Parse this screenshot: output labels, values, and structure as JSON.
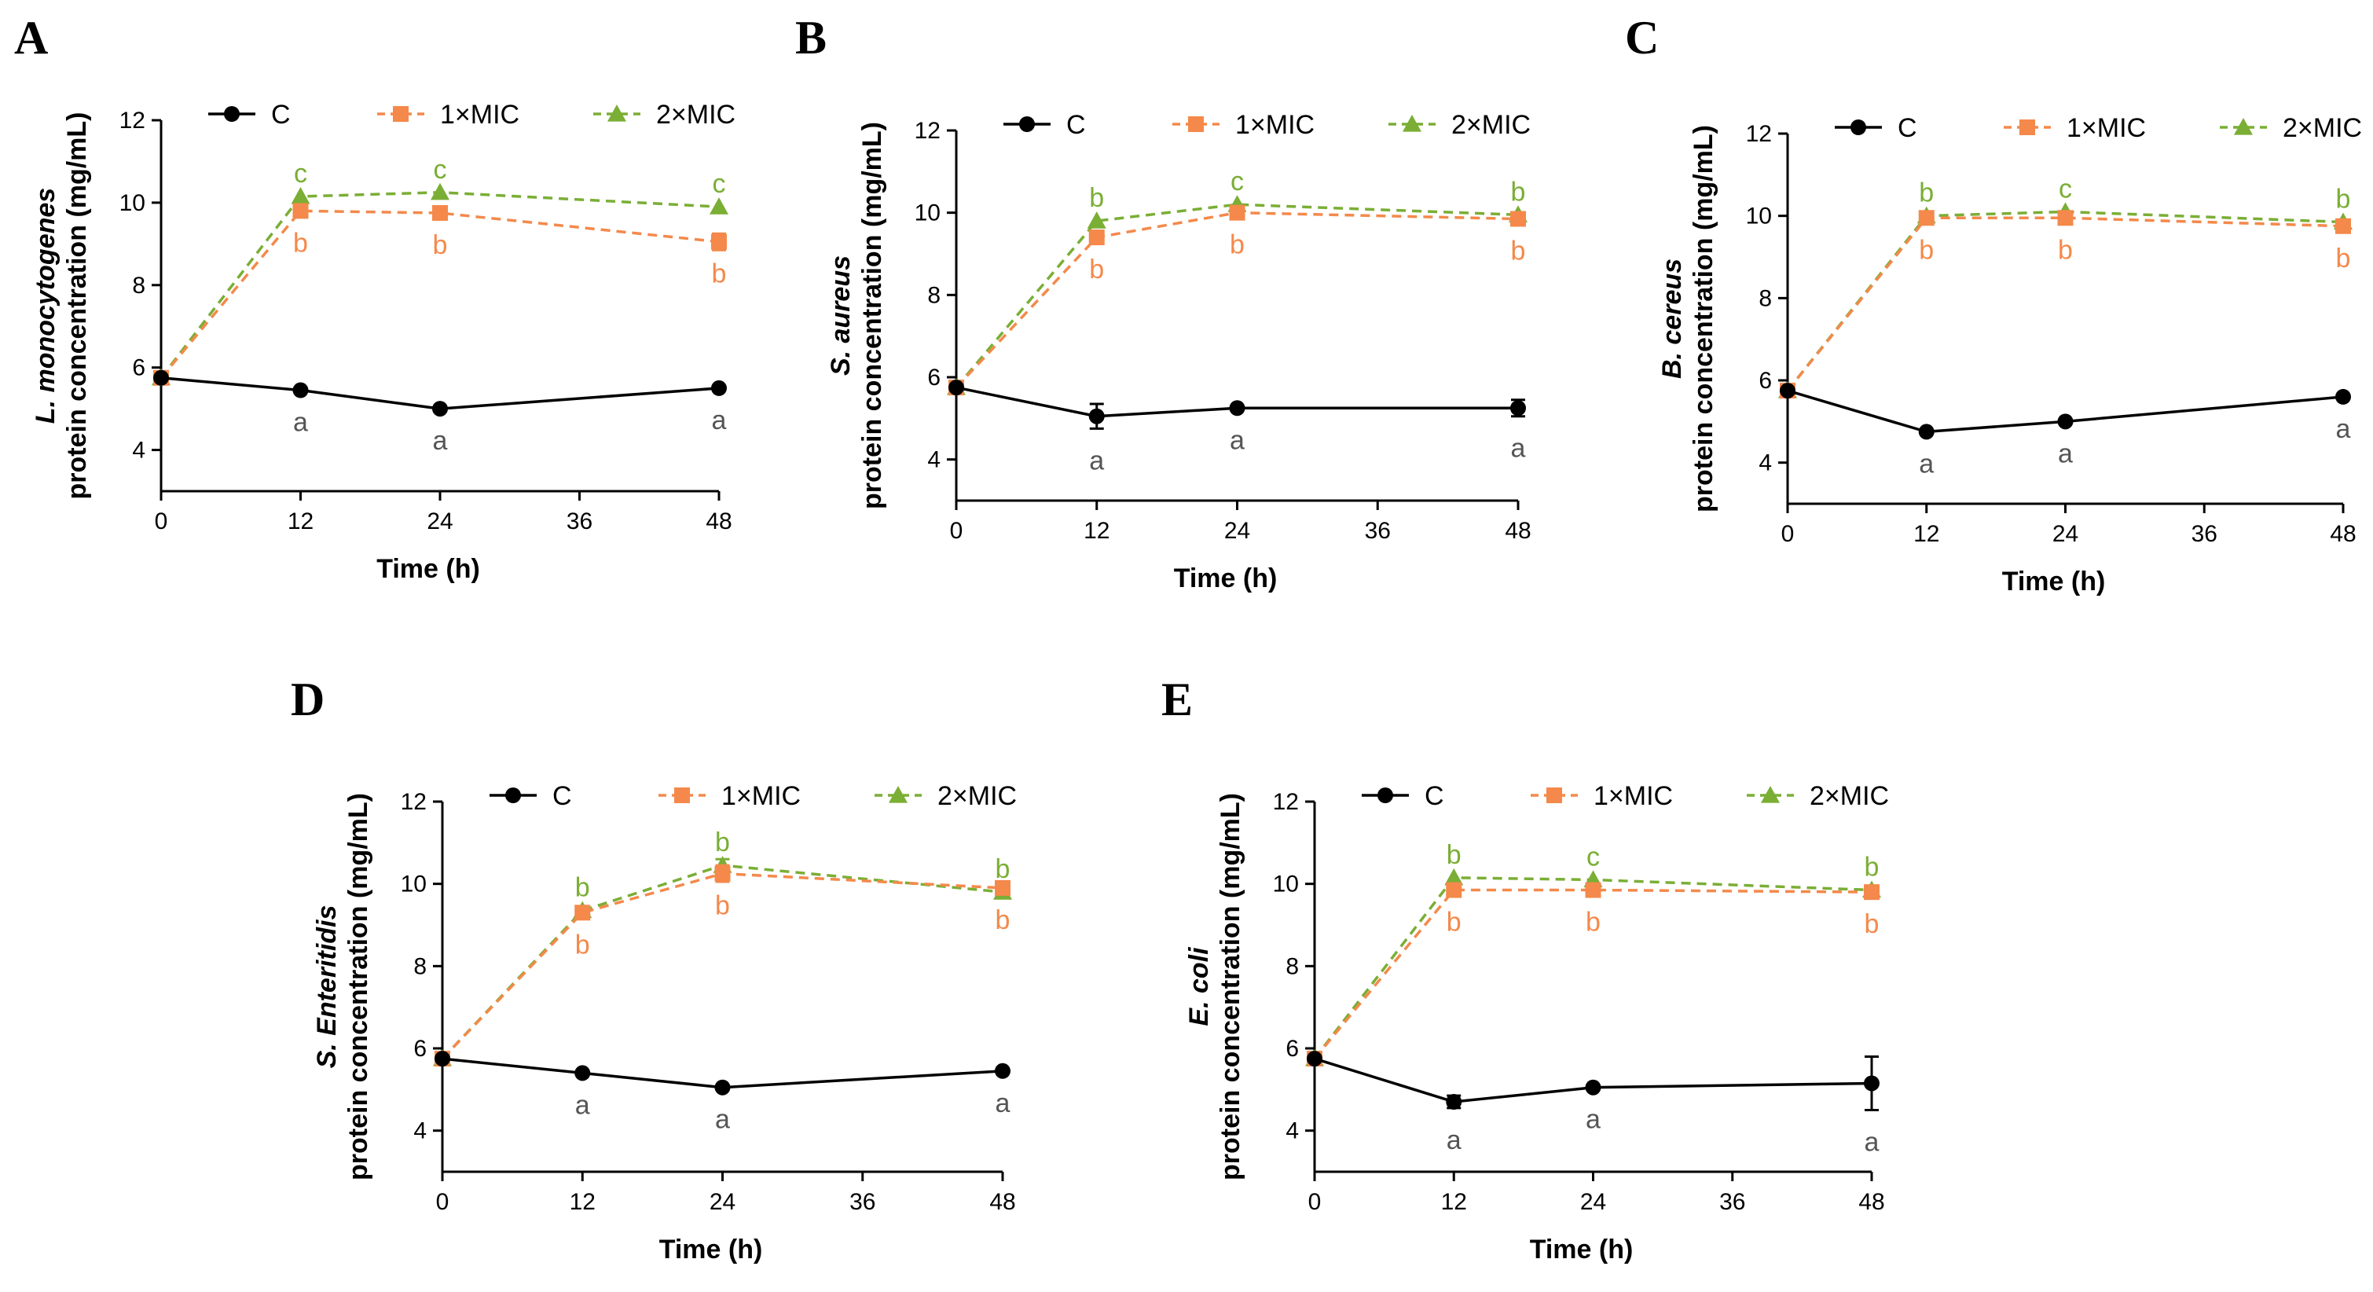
{
  "figure": {
    "type": "multi-panel line chart",
    "series_style": {
      "C": {
        "color": "#000000",
        "marker": "circle",
        "dash": "solid"
      },
      "1×MIC": {
        "color": "#F4894B",
        "marker": "square",
        "dash": "dashed"
      },
      "2×MIC": {
        "color": "#7AAE35",
        "marker": "triangle",
        "dash": "dashed"
      }
    },
    "label_color": "#555555"
  },
  "chart_data": [
    {
      "panel": "A",
      "type": "line",
      "xlabel": "Time (h)",
      "ylabel_species": "L. monocytogenes",
      "ylabel": "protein concentration (mg/mL)",
      "x": [
        0,
        12,
        24,
        48
      ],
      "xticks": [
        "0",
        "12",
        "24",
        "36",
        "48"
      ],
      "xlim": [
        0,
        48
      ],
      "yticks": [
        "4",
        "6",
        "8",
        "10",
        "12"
      ],
      "ylim": [
        3,
        12
      ],
      "legend": [
        "C",
        "1×MIC",
        "2×MIC"
      ],
      "series": [
        {
          "name": "C",
          "values": [
            5.75,
            5.45,
            5.0,
            5.5
          ],
          "err": [
            0.05,
            0.05,
            0.05,
            0.05
          ],
          "labels": [
            "",
            "a",
            "a",
            "a"
          ]
        },
        {
          "name": "1×MIC",
          "values": [
            5.75,
            9.8,
            9.75,
            9.05
          ],
          "err": [
            0.05,
            0.1,
            0.1,
            0.2
          ],
          "labels": [
            "",
            "b",
            "b",
            "b"
          ]
        },
        {
          "name": "2×MIC",
          "values": [
            5.75,
            10.15,
            10.25,
            9.9
          ],
          "err": [
            0.05,
            0.1,
            0.05,
            0.1
          ],
          "labels": [
            "",
            "c",
            "c",
            "c"
          ]
        }
      ]
    },
    {
      "panel": "B",
      "type": "line",
      "xlabel": "Time (h)",
      "ylabel_species": "S. aureus",
      "ylabel": "protein concentration (mg/mL)",
      "x": [
        0,
        12,
        24,
        48
      ],
      "xticks": [
        "0",
        "12",
        "24",
        "36",
        "48"
      ],
      "xlim": [
        0,
        48
      ],
      "yticks": [
        "4",
        "6",
        "8",
        "10",
        "12"
      ],
      "ylim": [
        3,
        12
      ],
      "legend": [
        "C",
        "1×MIC",
        "2×MIC"
      ],
      "series": [
        {
          "name": "C",
          "values": [
            5.75,
            5.05,
            5.25,
            5.25
          ],
          "err": [
            0.05,
            0.3,
            0.05,
            0.2
          ],
          "labels": [
            "",
            "a",
            "a",
            "a"
          ]
        },
        {
          "name": "1×MIC",
          "values": [
            5.75,
            9.4,
            10.0,
            9.85
          ],
          "err": [
            0.05,
            0.1,
            0.1,
            0.1
          ],
          "labels": [
            "",
            "b",
            "b",
            "b"
          ]
        },
        {
          "name": "2×MIC",
          "values": [
            5.75,
            9.8,
            10.2,
            9.95
          ],
          "err": [
            0.05,
            0.1,
            0.1,
            0.1
          ],
          "labels": [
            "",
            "b",
            "c",
            "b"
          ]
        }
      ]
    },
    {
      "panel": "C",
      "type": "line",
      "xlabel": "Time (h)",
      "ylabel_species": "B. cereus",
      "ylabel": "protein concentration (mg/mL)",
      "x": [
        0,
        12,
        24,
        48
      ],
      "xticks": [
        "0",
        "12",
        "24",
        "36",
        "48"
      ],
      "xlim": [
        0,
        48
      ],
      "yticks": [
        "4",
        "6",
        "8",
        "10",
        "12"
      ],
      "ylim": [
        3,
        12
      ],
      "legend": [
        "C",
        "1×MIC",
        "2×MIC"
      ],
      "series": [
        {
          "name": "C",
          "values": [
            5.75,
            4.75,
            5.0,
            5.6
          ],
          "err": [
            0.05,
            0.05,
            0.05,
            0.05
          ],
          "labels": [
            "",
            "a",
            "a",
            "a"
          ]
        },
        {
          "name": "1×MIC",
          "values": [
            5.75,
            9.95,
            9.95,
            9.75
          ],
          "err": [
            0.05,
            0.1,
            0.1,
            0.1
          ],
          "labels": [
            "",
            "b",
            "b",
            "b"
          ]
        },
        {
          "name": "2×MIC",
          "values": [
            5.75,
            10.0,
            10.1,
            9.85
          ],
          "err": [
            0.05,
            0.05,
            0.05,
            0.05
          ],
          "labels": [
            "",
            "b",
            "c",
            "b"
          ]
        }
      ]
    },
    {
      "panel": "D",
      "type": "line",
      "xlabel": "Time (h)",
      "ylabel_species": "S. Enteritidis",
      "ylabel": "protein concentration (mg/mL)",
      "x": [
        0,
        12,
        24,
        48
      ],
      "xticks": [
        "0",
        "12",
        "24",
        "36",
        "48"
      ],
      "xlim": [
        0,
        48
      ],
      "yticks": [
        "4",
        "6",
        "8",
        "10",
        "12"
      ],
      "ylim": [
        3,
        12
      ],
      "legend": [
        "C",
        "1×MIC",
        "2×MIC"
      ],
      "series": [
        {
          "name": "C",
          "values": [
            5.75,
            5.4,
            5.05,
            5.45
          ],
          "err": [
            0.05,
            0.05,
            0.05,
            0.05
          ],
          "labels": [
            "",
            "a",
            "a",
            "a"
          ]
        },
        {
          "name": "1×MIC",
          "values": [
            5.75,
            9.3,
            10.25,
            9.9
          ],
          "err": [
            0.05,
            0.1,
            0.2,
            0.1
          ],
          "labels": [
            "",
            "b",
            "b",
            "b"
          ]
        },
        {
          "name": "2×MIC",
          "values": [
            5.75,
            9.35,
            10.45,
            9.8
          ],
          "err": [
            0.05,
            0.1,
            0.15,
            0.1
          ],
          "labels": [
            "",
            "b",
            "b",
            "b"
          ]
        }
      ]
    },
    {
      "panel": "E",
      "type": "line",
      "xlabel": "Time (h)",
      "ylabel_species": "E. coli",
      "ylabel": "protein concentration (mg/mL)",
      "x": [
        0,
        12,
        24,
        48
      ],
      "xticks": [
        "0",
        "12",
        "24",
        "36",
        "48"
      ],
      "xlim": [
        0,
        48
      ],
      "yticks": [
        "4",
        "6",
        "8",
        "10",
        "12"
      ],
      "ylim": [
        3,
        12
      ],
      "legend": [
        "C",
        "1×MIC",
        "2×MIC"
      ],
      "series": [
        {
          "name": "C",
          "values": [
            5.75,
            4.7,
            5.05,
            5.15
          ],
          "err": [
            0.05,
            0.15,
            0.05,
            0.65
          ],
          "labels": [
            "",
            "a",
            "a",
            "a"
          ]
        },
        {
          "name": "1×MIC",
          "values": [
            5.75,
            9.85,
            9.85,
            9.8
          ],
          "err": [
            0.05,
            0.1,
            0.1,
            0.1
          ],
          "labels": [
            "",
            "b",
            "b",
            "b"
          ]
        },
        {
          "name": "2×MIC",
          "values": [
            5.75,
            10.15,
            10.1,
            9.85
          ],
          "err": [
            0.05,
            0.05,
            0.05,
            0.05
          ],
          "labels": [
            "",
            "b",
            "c",
            "b"
          ]
        }
      ]
    }
  ]
}
